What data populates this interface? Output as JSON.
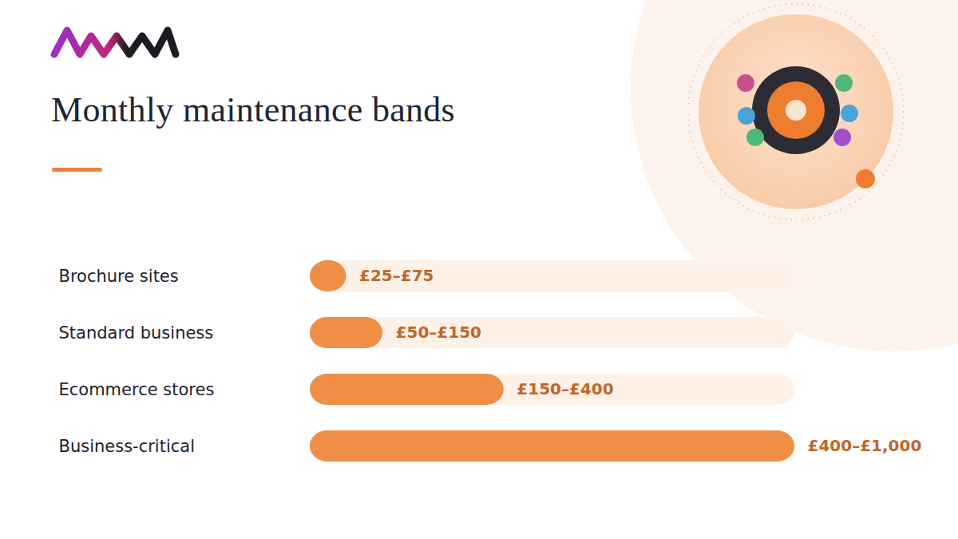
{
  "chart_data": {
    "type": "bar",
    "orientation": "horizontal",
    "title": "Monthly maintenance bands",
    "categories": [
      "Brochure sites",
      "Standard business",
      "Ecommerce stores",
      "Business-critical"
    ],
    "values": [
      75,
      150,
      400,
      1000
    ],
    "value_labels": [
      "£25–£75",
      "£50–£150",
      "£150–£400",
      "£400–£1,000"
    ],
    "data_labels": true,
    "color": "#ef8f45",
    "xlim": [
      0,
      1000
    ],
    "tick_labels": false,
    "grid": false
  }
}
